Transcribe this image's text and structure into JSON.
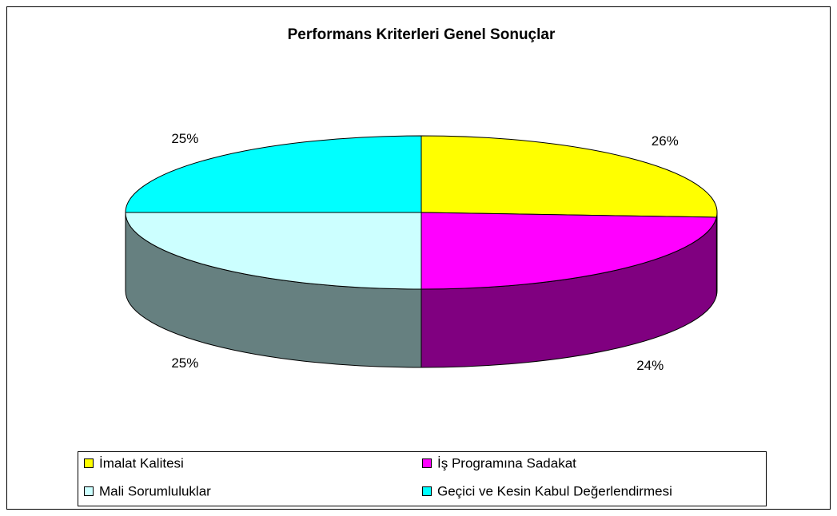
{
  "chart_data": {
    "type": "pie3d",
    "title": "Performans Kriterleri Genel Sonuçlar",
    "categories": [
      "İmalat Kalitesi",
      "İş Programına Sadakat",
      "Mali Sorumluluklar",
      "Geçici ve Kesin Kabul Değerlendirmesi"
    ],
    "values": [
      26,
      24,
      25,
      25
    ],
    "value_labels": [
      "26%",
      "24%",
      "25%",
      "25%"
    ],
    "colors": [
      "#ffff00",
      "#ff00ff",
      "#ccffff",
      "#00ffff"
    ],
    "legend": "bottom"
  }
}
